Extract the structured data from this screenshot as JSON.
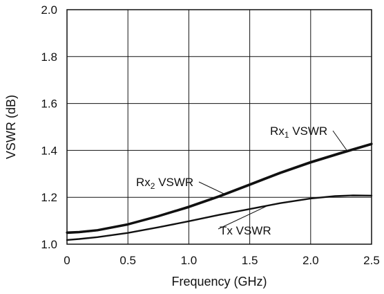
{
  "chart_data": {
    "type": "line",
    "title": "",
    "xlabel": "Frequency (GHz)",
    "ylabel": "VSWR (dB)",
    "xlim": [
      0,
      2.5
    ],
    "ylim": [
      1.0,
      2.0
    ],
    "x_ticks": [
      "0",
      "0.5",
      "1.0",
      "1.5",
      "2.0",
      "2.5"
    ],
    "y_ticks": [
      "1.0",
      "1.2",
      "1.4",
      "1.6",
      "1.8",
      "2.0"
    ],
    "grid": true,
    "series": [
      {
        "name": "Rx1 VSWR",
        "color": "#111111",
        "x": [
          0,
          0.1,
          0.25,
          0.5,
          0.75,
          1.0,
          1.25,
          1.5,
          1.75,
          2.0,
          2.25,
          2.5
        ],
        "y": [
          1.05,
          1.052,
          1.06,
          1.085,
          1.12,
          1.16,
          1.205,
          1.255,
          1.305,
          1.35,
          1.39,
          1.428
        ]
      },
      {
        "name": "Rx2 VSWR",
        "color": "#111111",
        "x": [
          0,
          0.1,
          0.25,
          0.5,
          0.75,
          1.0,
          1.25,
          1.5,
          1.75,
          2.0,
          2.25,
          2.5
        ],
        "y": [
          1.047,
          1.05,
          1.058,
          1.083,
          1.118,
          1.157,
          1.202,
          1.252,
          1.302,
          1.347,
          1.387,
          1.425
        ]
      },
      {
        "name": "Tx VSWR",
        "color": "#111111",
        "x": [
          0,
          0.1,
          0.25,
          0.5,
          0.75,
          1.0,
          1.25,
          1.5,
          1.75,
          2.0,
          2.2,
          2.35,
          2.5
        ],
        "y": [
          1.018,
          1.022,
          1.03,
          1.048,
          1.072,
          1.098,
          1.125,
          1.15,
          1.175,
          1.195,
          1.205,
          1.208,
          1.207
        ]
      }
    ],
    "annotations": [
      {
        "series": 0,
        "text_main": "Rx",
        "text_sub": "1",
        "text_rest": " VSWR",
        "x": 2.3,
        "y": 1.43
      },
      {
        "series": 1,
        "text_main": "Rx",
        "text_sub": "2",
        "text_rest": " VSWR",
        "x": 1.3,
        "y": 1.23
      },
      {
        "series": 2,
        "text_main": "Tx",
        "text_sub": "",
        "text_rest": " VSWR",
        "x": 1.65,
        "y": 1.05
      }
    ]
  }
}
